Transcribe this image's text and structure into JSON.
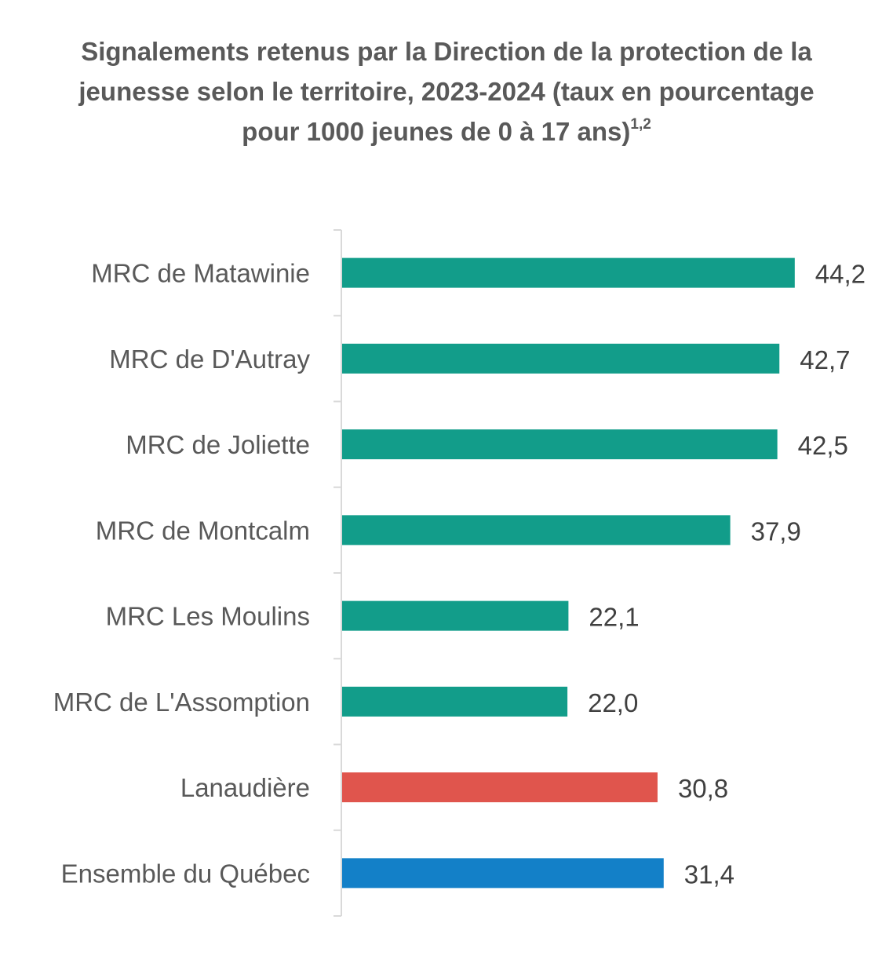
{
  "chart_data": {
    "type": "bar",
    "orientation": "horizontal",
    "title": "Signalements retenus par la Direction de la protection de la jeunesse selon le territoire, 2023-2024 (taux en pourcentage pour 1000 jeunes de 0 à 17 ans)",
    "title_superscript": "1,2",
    "categories": [
      "MRC de Matawinie",
      "MRC de D'Autray",
      "MRC de Joliette",
      "MRC de Montcalm",
      "MRC Les Moulins",
      "MRC de L'Assomption",
      "Lanaudière",
      "Ensemble du Québec"
    ],
    "values": [
      44.2,
      42.7,
      42.5,
      37.9,
      22.1,
      22.0,
      30.8,
      31.4
    ],
    "value_labels": [
      "44,2",
      "42,7",
      "42,5",
      "37,9",
      "22,1",
      "22,0",
      "30,8",
      "31,4"
    ],
    "bar_colors": [
      "#129d8a",
      "#129d8a",
      "#129d8a",
      "#129d8a",
      "#129d8a",
      "#129d8a",
      "#e0554d",
      "#1380c8"
    ],
    "xlim": [
      0,
      50
    ],
    "xaxis_visible": false,
    "grid": false,
    "legend": "none",
    "xlabel": "",
    "ylabel": ""
  }
}
